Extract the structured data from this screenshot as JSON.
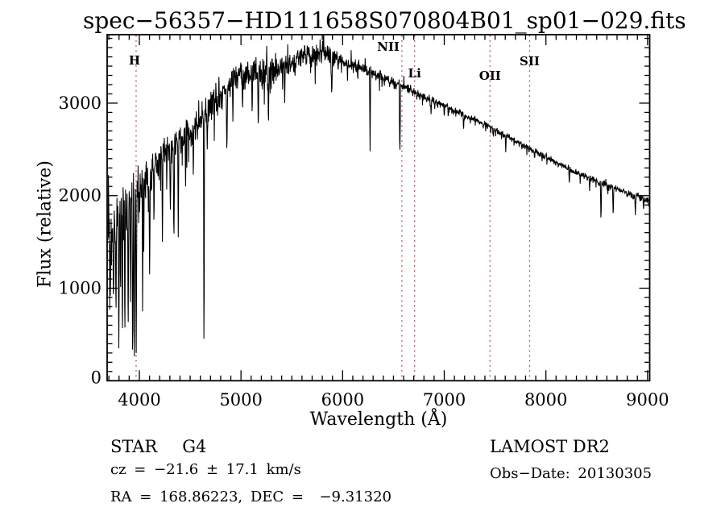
{
  "title": "spec−56357−HD111658S070804B01_sp01−029.fits",
  "annotations": {
    "class_label": "STAR",
    "subclass": "G4",
    "survey": "LAMOST DR2",
    "cz_line": "cz = −21.6 ± 17.1 km/s",
    "radec_line": "RA = 168.86223, DEC =  −9.31320",
    "obsdate_line": "Obs−Date: 20130305"
  },
  "chart_data": {
    "type": "line",
    "title": "spec−56357−HD111658S070804B01_sp01−029.fits",
    "xlabel": "Wavelength (Å)",
    "ylabel": "Flux (relative)",
    "xlim": [
      3683,
      9021
    ],
    "ylim": [
      0,
      3740
    ],
    "x_ticks": [
      4000,
      5000,
      6000,
      7000,
      8000,
      9000
    ],
    "y_ticks": [
      0,
      1000,
      2000,
      3000
    ],
    "x_minor_step": 100,
    "y_minor_step": 100,
    "grid": false,
    "line_color": "#000000",
    "marker_color": "#96232e",
    "line_markers": [
      {
        "label": "H",
        "wavelength": 3968,
        "anchor": "middle",
        "dx": -2,
        "label_y": 80
      },
      {
        "label": "NII",
        "wavelength": 6583,
        "anchor": "end",
        "dx": -3,
        "label_y": 63
      },
      {
        "label": "Li",
        "wavelength": 6708,
        "anchor": "middle",
        "dx": 0,
        "label_y": 96
      },
      {
        "label": "OII",
        "wavelength": 7450,
        "anchor": "middle",
        "dx": 0,
        "label_y": 99
      },
      {
        "label": "SII",
        "wavelength": 7840,
        "anchor": "middle",
        "dx": 0,
        "label_y": 81
      }
    ],
    "spectrum": {
      "lambda_start": 3690,
      "lambda_end": 9020,
      "step": 3,
      "seed": 987654321,
      "clip_max": 3736,
      "envelope": [
        [
          3690,
          1700
        ],
        [
          3800,
          1700
        ],
        [
          3900,
          1950
        ],
        [
          4000,
          2000
        ],
        [
          4100,
          2250
        ],
        [
          4200,
          2420
        ],
        [
          4300,
          2500
        ],
        [
          4400,
          2600
        ],
        [
          4500,
          2700
        ],
        [
          4600,
          2800
        ],
        [
          4700,
          2950
        ],
        [
          4800,
          3100
        ],
        [
          4900,
          3250
        ],
        [
          5000,
          3300
        ],
        [
          5100,
          3320
        ],
        [
          5200,
          3300
        ],
        [
          5300,
          3350
        ],
        [
          5400,
          3400
        ],
        [
          5500,
          3450
        ],
        [
          5600,
          3500
        ],
        [
          5750,
          3550
        ],
        [
          5850,
          3540
        ],
        [
          5900,
          3500
        ],
        [
          6000,
          3450
        ],
        [
          6100,
          3420
        ],
        [
          6200,
          3370
        ],
        [
          6300,
          3320
        ],
        [
          6400,
          3270
        ],
        [
          6500,
          3220
        ],
        [
          6600,
          3180
        ],
        [
          6700,
          3120
        ],
        [
          6800,
          3070
        ],
        [
          6900,
          3020
        ],
        [
          7000,
          2970
        ],
        [
          7100,
          2920
        ],
        [
          7200,
          2870
        ],
        [
          7300,
          2820
        ],
        [
          7400,
          2770
        ],
        [
          7500,
          2710
        ],
        [
          7600,
          2650
        ],
        [
          7700,
          2590
        ],
        [
          7800,
          2530
        ],
        [
          7900,
          2470
        ],
        [
          8000,
          2420
        ],
        [
          8100,
          2360
        ],
        [
          8200,
          2300
        ],
        [
          8300,
          2250
        ],
        [
          8400,
          2200
        ],
        [
          8500,
          2150
        ],
        [
          8600,
          2110
        ],
        [
          8700,
          2070
        ],
        [
          8800,
          2030
        ],
        [
          8900,
          1990
        ],
        [
          9020,
          1945
        ]
      ],
      "noise_sigma": [
        [
          3690,
          360
        ],
        [
          3800,
          340
        ],
        [
          3900,
          300
        ],
        [
          3950,
          280
        ],
        [
          4000,
          240
        ],
        [
          4100,
          200
        ],
        [
          4200,
          180
        ],
        [
          4300,
          165
        ],
        [
          4500,
          150
        ],
        [
          4700,
          140
        ],
        [
          4900,
          130
        ],
        [
          5100,
          120
        ],
        [
          5300,
          110
        ],
        [
          5500,
          100
        ],
        [
          5800,
          100
        ],
        [
          5900,
          90
        ],
        [
          6000,
          70
        ],
        [
          6200,
          55
        ],
        [
          6400,
          48
        ],
        [
          6600,
          40
        ],
        [
          6800,
          34
        ],
        [
          7000,
          28
        ],
        [
          7400,
          24
        ],
        [
          7800,
          24
        ],
        [
          8200,
          26
        ],
        [
          8600,
          28
        ],
        [
          9020,
          30
        ]
      ],
      "absorption_dips": [
        [
          3715,
          800,
          5
        ],
        [
          3748,
          900,
          5
        ],
        [
          3770,
          650,
          5
        ],
        [
          3798,
          350,
          6
        ],
        [
          3815,
          900,
          5
        ],
        [
          3833,
          380,
          5
        ],
        [
          3857,
          380,
          5
        ],
        [
          3890,
          480,
          6
        ],
        [
          3912,
          850,
          5
        ],
        [
          3934,
          180,
          7
        ],
        [
          3950,
          60,
          6
        ],
        [
          3969,
          300,
          6
        ],
        [
          4032,
          750,
          5
        ],
        [
          4101,
          1150,
          7
        ],
        [
          4144,
          1650,
          5
        ],
        [
          4227,
          1500,
          6
        ],
        [
          4305,
          1850,
          7
        ],
        [
          4340,
          1500,
          7
        ],
        [
          4383,
          1550,
          5
        ],
        [
          4455,
          2100,
          5
        ],
        [
          4531,
          2150,
          5
        ],
        [
          4636,
          85,
          5
        ],
        [
          4668,
          2500,
          5
        ],
        [
          4861,
          2450,
          7
        ],
        [
          4920,
          2800,
          5
        ],
        [
          5015,
          2900,
          5
        ],
        [
          5110,
          2850,
          5
        ],
        [
          5170,
          2720,
          6
        ],
        [
          5270,
          2750,
          6
        ],
        [
          5430,
          3000,
          5
        ],
        [
          5893,
          3080,
          7
        ],
        [
          6270,
          2480,
          5
        ],
        [
          6563,
          2430,
          7
        ],
        [
          6870,
          2880,
          5
        ],
        [
          7000,
          2850,
          5
        ],
        [
          7190,
          2700,
          5
        ],
        [
          7605,
          2470,
          5
        ],
        [
          8230,
          2120,
          5
        ],
        [
          8430,
          2050,
          5
        ],
        [
          8542,
          1720,
          6
        ],
        [
          8662,
          1780,
          6
        ],
        [
          8880,
          1790,
          5
        ],
        [
          8960,
          1840,
          5
        ]
      ]
    }
  }
}
